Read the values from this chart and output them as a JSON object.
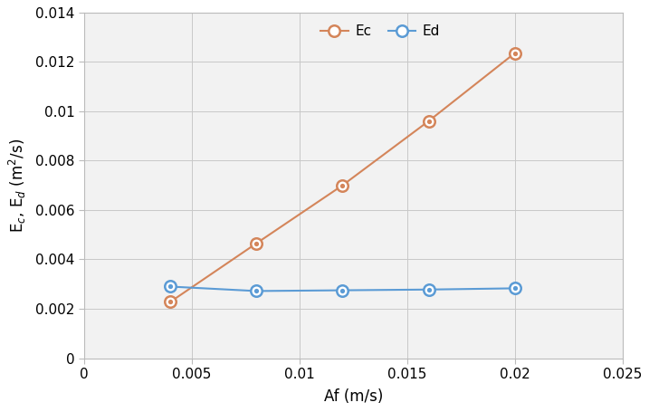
{
  "Af": [
    0.004,
    0.008,
    0.012,
    0.016,
    0.02
  ],
  "Ec": [
    0.00228,
    0.00465,
    0.007,
    0.0096,
    0.01235
  ],
  "Ed": [
    0.0029,
    0.00272,
    0.00275,
    0.00278,
    0.00283
  ],
  "xlabel": "Af (m/s)",
  "ylabel": "E_c, E_d (m²/s)",
  "xlim": [
    0,
    0.025
  ],
  "ylim": [
    0,
    0.014
  ],
  "xticks": [
    0,
    0.005,
    0.01,
    0.015,
    0.02,
    0.025
  ],
  "yticks": [
    0,
    0.002,
    0.004,
    0.006,
    0.008,
    0.01,
    0.012,
    0.014
  ],
  "Ec_color": "#D4855A",
  "Ed_color": "#5B9BD5",
  "legend_Ec": "Ec",
  "legend_Ed": "Ed",
  "marker_size": 9,
  "line_width": 1.5,
  "grid_color": "#C8C8C8",
  "bg_color": "#F2F2F2",
  "spine_color": "#BBBBBB"
}
